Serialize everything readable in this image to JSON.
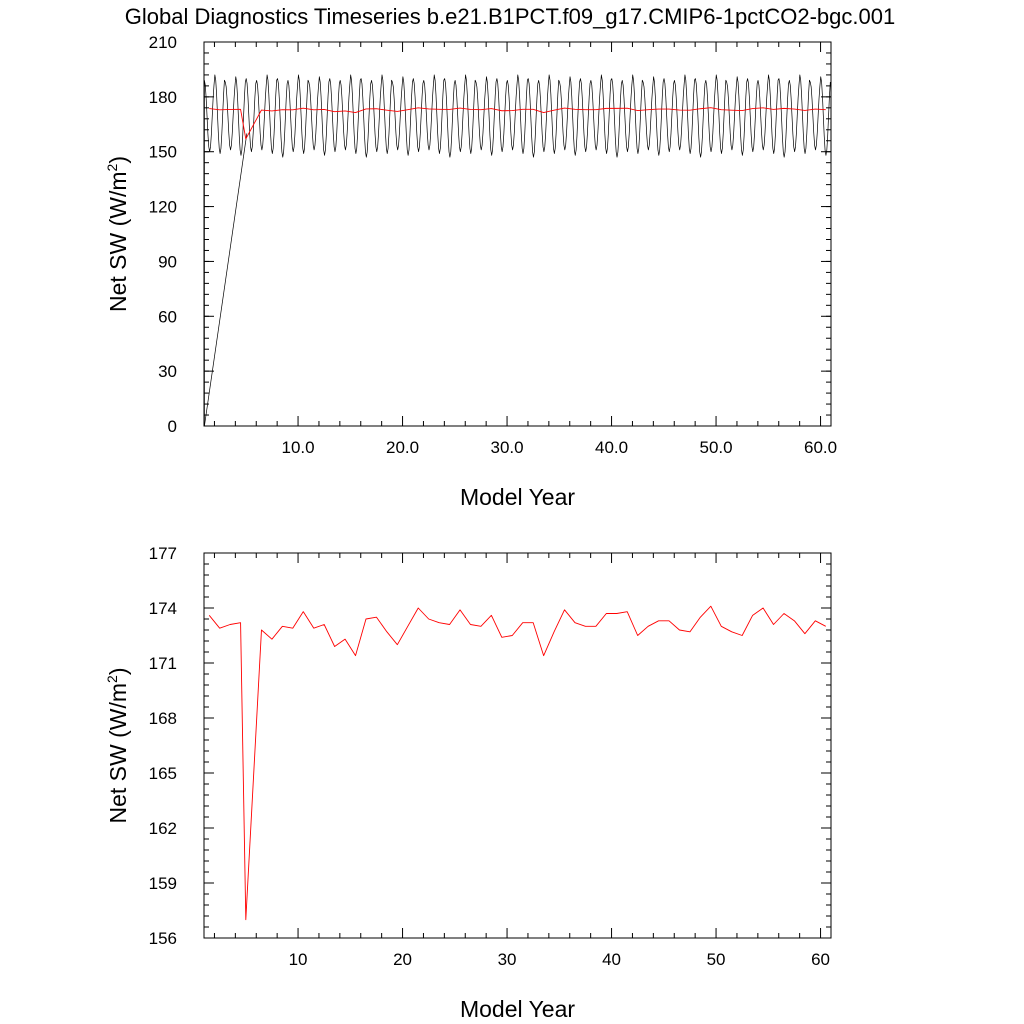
{
  "page": {
    "title": "Global Diagnostics Timeseries b.e21.B1PCT.f09_g17.CMIP6-1pctCO2-bgc.001"
  },
  "colors": {
    "monthly_series": "#000000",
    "annual_series": "#ff0000",
    "axes": "#000000"
  },
  "chart_data": [
    {
      "type": "line",
      "ylabel_main": "Net SW (W/m",
      "ylabel_sup": "2",
      "ylabel_close": ")",
      "xlabel": "Model Year",
      "xlim": [
        1,
        61
      ],
      "ylim": [
        0,
        210
      ],
      "x_ticks": [
        10,
        20,
        30,
        40,
        50,
        60
      ],
      "x_tick_labels": [
        "10.0",
        "20.0",
        "30.0",
        "40.0",
        "50.0",
        "60.0"
      ],
      "y_ticks": [
        0,
        30,
        60,
        90,
        120,
        150,
        180,
        210
      ],
      "y_tick_labels": [
        "0",
        "30",
        "60",
        "90",
        "120",
        "150",
        "180",
        "210"
      ],
      "series": [
        {
          "color": "#000000",
          "width": 0.7,
          "start": {
            "x": 1.04,
            "y": 0
          },
          "monthly": {
            "x_start": 1.04,
            "step": 0.0833,
            "months": 720,
            "base_min": 150,
            "base_max": 189,
            "max_pattern": [
              189,
              192,
              188,
              191,
              190,
              189,
              192,
              190
            ],
            "min_pattern": [
              150,
              149,
              151,
              148,
              150,
              151,
              149,
              147
            ]
          }
        },
        {
          "color": "#ff0000",
          "width": 0.9,
          "x": [
            1.5,
            2.5,
            3.5,
            4.5,
            5.0,
            6.5,
            7.5,
            8.5,
            9.5,
            10.5,
            11.5,
            12.5,
            13.5,
            14.5,
            15.5,
            16.5,
            17.5,
            18.5,
            19.5,
            20.5,
            21.5,
            22.5,
            23.5,
            24.5,
            25.5,
            26.5,
            27.5,
            28.5,
            29.5,
            30.5,
            31.5,
            32.5,
            33.5,
            34.5,
            35.5,
            36.5,
            37.5,
            38.5,
            39.5,
            40.5,
            41.5,
            42.5,
            43.5,
            44.5,
            45.5,
            46.5,
            47.5,
            48.5,
            49.5,
            50.5,
            51.5,
            52.5,
            53.5,
            54.5,
            55.5,
            56.5,
            57.5,
            58.5,
            59.5,
            60.5
          ],
          "y": [
            173.6,
            172.9,
            173.1,
            173.2,
            157.0,
            172.8,
            172.3,
            173.0,
            172.9,
            173.8,
            172.9,
            173.1,
            171.9,
            172.3,
            171.4,
            173.4,
            173.5,
            172.7,
            172.0,
            173.0,
            174.0,
            173.4,
            173.2,
            173.1,
            173.9,
            173.1,
            173.0,
            173.6,
            172.4,
            172.5,
            173.2,
            173.2,
            171.4,
            172.7,
            173.9,
            173.2,
            173.0,
            173.0,
            173.7,
            173.7,
            173.8,
            172.5,
            173.0,
            173.3,
            173.3,
            172.8,
            172.7,
            173.5,
            174.1,
            173.0,
            172.7,
            172.5,
            173.6,
            174.0,
            173.1,
            173.7,
            173.3,
            172.6,
            173.3,
            173.0
          ]
        }
      ]
    },
    {
      "type": "line",
      "ylabel_main": "Net SW (W/m",
      "ylabel_sup": "2",
      "ylabel_close": ")",
      "xlabel": "Model Year",
      "xlim": [
        1,
        61
      ],
      "ylim": [
        156,
        177
      ],
      "x_ticks": [
        10,
        20,
        30,
        40,
        50,
        60
      ],
      "x_tick_labels": [
        "10",
        "20",
        "30",
        "40",
        "50",
        "60"
      ],
      "y_ticks": [
        156,
        159,
        162,
        165,
        168,
        171,
        174,
        177
      ],
      "y_tick_labels": [
        "156",
        "159",
        "162",
        "165",
        "168",
        "171",
        "174",
        "177"
      ],
      "series": [
        {
          "color": "#ff0000",
          "width": 0.9,
          "x": [
            1.5,
            2.5,
            3.5,
            4.5,
            5.0,
            6.5,
            7.5,
            8.5,
            9.5,
            10.5,
            11.5,
            12.5,
            13.5,
            14.5,
            15.5,
            16.5,
            17.5,
            18.5,
            19.5,
            20.5,
            21.5,
            22.5,
            23.5,
            24.5,
            25.5,
            26.5,
            27.5,
            28.5,
            29.5,
            30.5,
            31.5,
            32.5,
            33.5,
            34.5,
            35.5,
            36.5,
            37.5,
            38.5,
            39.5,
            40.5,
            41.5,
            42.5,
            43.5,
            44.5,
            45.5,
            46.5,
            47.5,
            48.5,
            49.5,
            50.5,
            51.5,
            52.5,
            53.5,
            54.5,
            55.5,
            56.5,
            57.5,
            58.5,
            59.5,
            60.5
          ],
          "y": [
            173.6,
            172.9,
            173.1,
            173.2,
            157.0,
            172.8,
            172.3,
            173.0,
            172.9,
            173.8,
            172.9,
            173.1,
            171.9,
            172.3,
            171.4,
            173.4,
            173.5,
            172.7,
            172.0,
            173.0,
            174.0,
            173.4,
            173.2,
            173.1,
            173.9,
            173.1,
            173.0,
            173.6,
            172.4,
            172.5,
            173.2,
            173.2,
            171.4,
            172.7,
            173.9,
            173.2,
            173.0,
            173.0,
            173.7,
            173.7,
            173.8,
            172.5,
            173.0,
            173.3,
            173.3,
            172.8,
            172.7,
            173.5,
            174.1,
            173.0,
            172.7,
            172.5,
            173.6,
            174.0,
            173.1,
            173.7,
            173.3,
            172.6,
            173.3,
            173.0
          ]
        }
      ]
    }
  ]
}
